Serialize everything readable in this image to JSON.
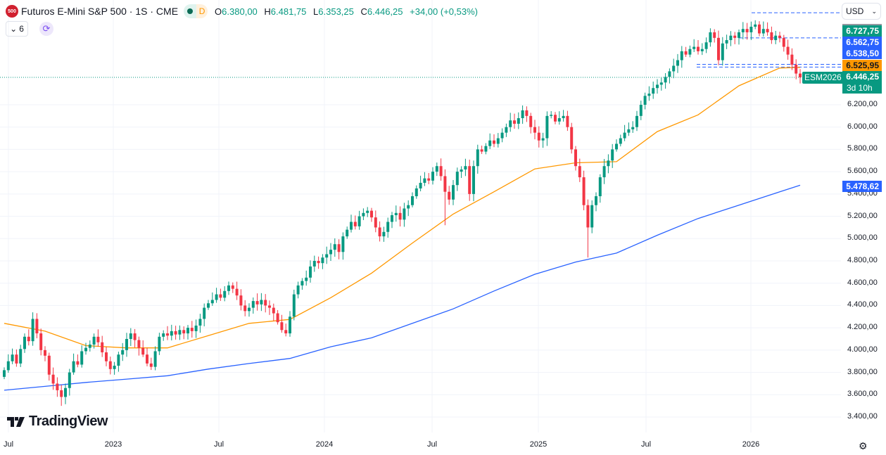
{
  "header": {
    "symbol_logo": "500",
    "title": "Futuros E-Mini S&P 500 · 1S · CME",
    "market_status_label": "D",
    "ohlc": {
      "o_label": "O",
      "o": "6.380,00",
      "h_label": "H",
      "h": "6.481,75",
      "l_label": "L",
      "l": "6.353,25",
      "c_label": "C",
      "c": "6.446,25",
      "change": "+34,00 (+0,53%)"
    },
    "indicators_count": "6"
  },
  "currency": "USD",
  "branding": "TradingView",
  "price_labels": [
    {
      "text": "6.727,75",
      "color": "#089981"
    },
    {
      "text": "6.562,75",
      "color": "#2962ff"
    },
    {
      "text": "6.538,50",
      "color": "#2962ff"
    },
    {
      "text": "6.525,95",
      "color": "#ff9800"
    },
    {
      "text": "6.446,25",
      "color": "#089981",
      "countdown": "3d 10h",
      "symbol": "ESM2026"
    },
    {
      "text": "5.478,62",
      "color": "#2962ff"
    }
  ],
  "colors": {
    "up": "#089981",
    "down": "#f23645",
    "ma_fast": "#ff9800",
    "ma_slow": "#2962ff",
    "grid": "#f0f3fa"
  },
  "chart_data": {
    "type": "candlestick",
    "interval": "weekly",
    "x_tick_labels": [
      "Jul",
      "2023",
      "Jul",
      "2024",
      "Jul",
      "2025",
      "Jul",
      "2026"
    ],
    "y_tick_labels": [
      "3.400,00",
      "3.600,00",
      "3.800,00",
      "4.000,00",
      "4.200,00",
      "4.400,00",
      "4.600,00",
      "4.800,00",
      "5.000,00",
      "5.200,00",
      "5.400,00",
      "5.600,00",
      "5.800,00",
      "6.000,00",
      "6.200,00"
    ],
    "ylim": [
      3350,
      7100
    ],
    "grid": true,
    "close": [
      3820,
      3900,
      3960,
      3880,
      4010,
      4120,
      4080,
      4280,
      4150,
      4000,
      3950,
      3780,
      3700,
      3640,
      3580,
      3660,
      3800,
      3900,
      3870,
      3990,
      4020,
      4050,
      4120,
      4070,
      3980,
      3900,
      3830,
      3860,
      3960,
      4000,
      4100,
      4150,
      4090,
      4020,
      3960,
      3880,
      3850,
      3990,
      4120,
      4150,
      4130,
      4170,
      4140,
      4180,
      4150,
      4200,
      4170,
      4220,
      4280,
      4380,
      4420,
      4450,
      4500,
      4470,
      4530,
      4580,
      4550,
      4490,
      4400,
      4350,
      4380,
      4440,
      4410,
      4450,
      4400,
      4380,
      4330,
      4250,
      4180,
      4150,
      4300,
      4500,
      4580,
      4620,
      4650,
      4750,
      4800,
      4780,
      4830,
      4860,
      4900,
      4950,
      4880,
      5020,
      5080,
      5150,
      5110,
      5200,
      5230,
      5250,
      5190,
      5100,
      5020,
      5060,
      5150,
      5210,
      5230,
      5170,
      5270,
      5300,
      5380,
      5450,
      5500,
      5540,
      5520,
      5600,
      5650,
      5560,
      5420,
      5350,
      5480,
      5600,
      5620,
      5650,
      5400,
      5650,
      5800,
      5780,
      5830,
      5880,
      5850,
      5900,
      5950,
      6000,
      6060,
      6030,
      6080,
      6150,
      6100,
      6000,
      5950,
      5880,
      5900,
      6100,
      6110,
      6050,
      6080,
      6100,
      6000,
      5800,
      5650,
      5550,
      5300,
      5100,
      5300,
      5380,
      5550,
      5650,
      5700,
      5800,
      5850,
      5900,
      5950,
      5980,
      6000,
      6100,
      6200,
      6280,
      6300,
      6350,
      6380,
      6400,
      6450,
      6500,
      6550,
      6600,
      6680,
      6650,
      6700,
      6720,
      6680,
      6700,
      6760,
      6850,
      6800,
      6600,
      6750,
      6780,
      6820,
      6800,
      6850,
      6880,
      6850,
      6900,
      6920,
      6840,
      6880,
      6850,
      6780,
      6820,
      6800,
      6720,
      6650,
      6560,
      6480,
      6446.25
    ],
    "notable_lows": [
      [
        14,
        3500
      ],
      [
        108,
        5120
      ],
      [
        143,
        4830
      ]
    ],
    "ma_fast_every_10": [
      4240,
      4170,
      4040,
      4020,
      4020,
      4130,
      4240,
      4275,
      4470,
      4690,
      4960,
      5220,
      5420,
      5625,
      5680,
      5690,
      5960,
      6110,
      6370,
      6530,
      6535
    ],
    "ma_slow_every_10": [
      3640,
      3675,
      3710,
      3740,
      3770,
      3830,
      3880,
      3925,
      4030,
      4110,
      4240,
      4370,
      4530,
      4680,
      4790,
      4870,
      5030,
      5180,
      5300,
      5420,
      5478.62
    ],
    "levels": [
      7025,
      6800,
      6562.75,
      6538.5
    ]
  }
}
